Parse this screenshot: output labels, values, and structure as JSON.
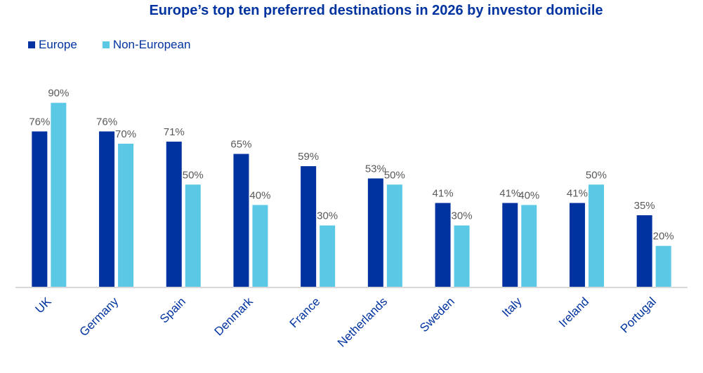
{
  "chart_data": {
    "type": "bar",
    "title": "Europe’s top ten preferred destinations  in 2026 by investor domicile",
    "xlabel": "",
    "ylabel": "",
    "ylim": [
      0,
      100
    ],
    "grid": false,
    "legend_position": "top-left",
    "categories": [
      "UK",
      "Germany",
      "Spain",
      "Denmark",
      "France",
      "Netherlands",
      "Sweden",
      "Italy",
      "Ireland",
      "Portugal"
    ],
    "series": [
      {
        "name": "Europe",
        "color": "#0033A0",
        "values": [
          76,
          76,
          71,
          65,
          59,
          53,
          41,
          41,
          41,
          35
        ]
      },
      {
        "name": "Non-European",
        "color": "#5BC8E6",
        "values": [
          90,
          70,
          50,
          40,
          30,
          50,
          30,
          40,
          50,
          20
        ]
      }
    ],
    "value_format": "{v}%"
  }
}
